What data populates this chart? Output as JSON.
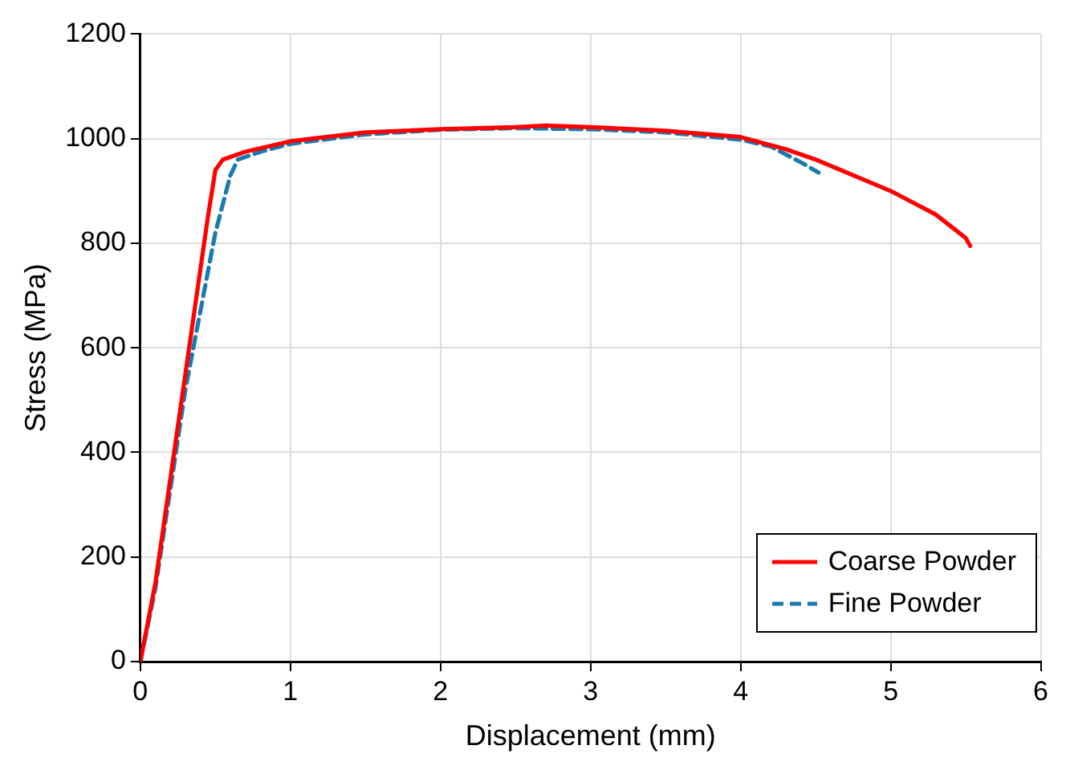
{
  "chart_data": {
    "type": "line",
    "xlabel": "Displacement (mm)",
    "ylabel": "Stress (MPa)",
    "xlim": [
      0,
      6
    ],
    "xticks": [
      0,
      1,
      2,
      3,
      4,
      5,
      6
    ],
    "ylim": [
      0,
      1200
    ],
    "yticks": [
      0,
      200,
      400,
      600,
      800,
      1000,
      1200
    ],
    "grid": true,
    "legend": "bottom right",
    "marker": "none",
    "series": [
      {
        "name": "Coarse Powder",
        "color": "#ff0000",
        "line_style": "solid",
        "x": [
          0,
          0.1,
          0.3,
          0.45,
          0.5,
          0.55,
          0.7,
          1,
          1.5,
          2,
          2.5,
          2.7,
          3,
          3.5,
          4,
          4.3,
          4.5,
          5,
          5.3,
          5.5,
          5.53
        ],
        "values": [
          0,
          150,
          550,
          850,
          940,
          960,
          975,
          995,
          1012,
          1018,
          1022,
          1025,
          1022,
          1015,
          1003,
          980,
          960,
          900,
          855,
          810,
          795
        ]
      },
      {
        "name": "Fine Powder",
        "color": "#1a7ab0",
        "line_style": "dashed",
        "x": [
          0,
          0.1,
          0.3,
          0.5,
          0.6,
          0.65,
          0.8,
          1,
          1.5,
          2,
          2.5,
          3,
          3.5,
          4,
          4.2,
          4.4,
          4.52
        ],
        "values": [
          0,
          140,
          520,
          820,
          930,
          960,
          975,
          990,
          1008,
          1017,
          1020,
          1018,
          1012,
          998,
          985,
          955,
          935
        ]
      }
    ]
  }
}
